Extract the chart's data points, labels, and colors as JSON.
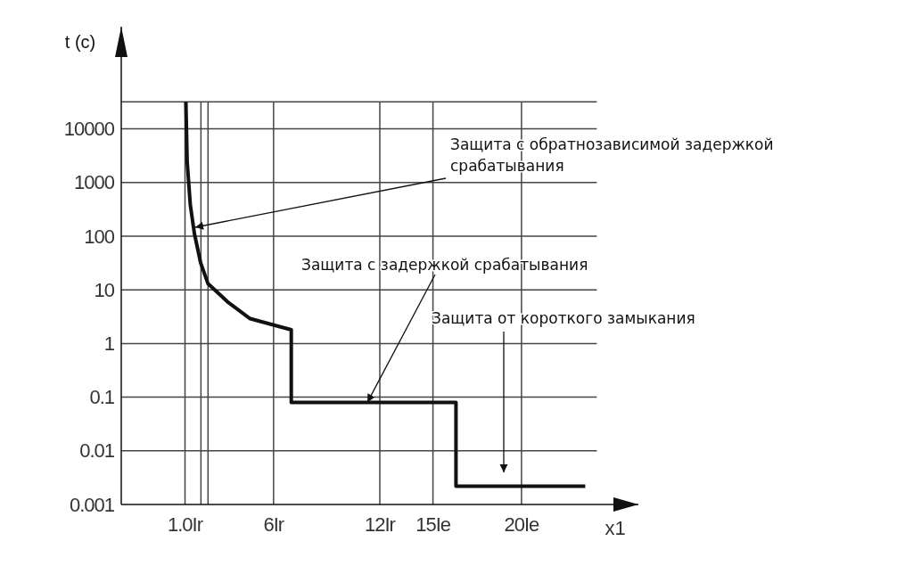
{
  "chart_data": {
    "type": "line",
    "xlabel": "x1",
    "ylabel": "t (c)",
    "log": "y",
    "grid": true,
    "marker": "none",
    "line_style": "solid",
    "xlim": [
      -2.6,
      26.6
    ],
    "ylim": [
      0.001,
      800000
    ],
    "xticks": [
      {
        "value": 1,
        "label": "1.0Ir"
      },
      {
        "value": 1.9,
        "label": null
      },
      {
        "value": 2.3,
        "label": null
      },
      {
        "value": 6,
        "label": "6Ir"
      },
      {
        "value": 12,
        "label": "12Ir"
      },
      {
        "value": 15,
        "label": "15Ie"
      },
      {
        "value": 20,
        "label": "20Ie"
      }
    ],
    "yticks": [
      0.001,
      0.01,
      0.1,
      1,
      10,
      100,
      1000,
      10000,
      {
        "value": 32000,
        "label": null
      }
    ],
    "series": [
      {
        "color": "#111111",
        "x": [
          1.05,
          1.12,
          1.3,
          1.53,
          1.88,
          2.3,
          3.45,
          4.68,
          7,
          7,
          16.3,
          16.3,
          23.6
        ],
        "values": [
          32000,
          2500,
          380,
          112,
          32,
          13,
          5.8,
          2.9,
          1.8,
          0.08,
          0.08,
          0.0022,
          0.0022
        ]
      }
    ],
    "annotations": [
      "Защита с обратнозависимой задержкой срабатывания",
      {
        "text": "Защита с задержкой срабатывания",
        "x": 11.3,
        "y": 0.08
      },
      "Защита от короткого замыкания"
    ]
  }
}
